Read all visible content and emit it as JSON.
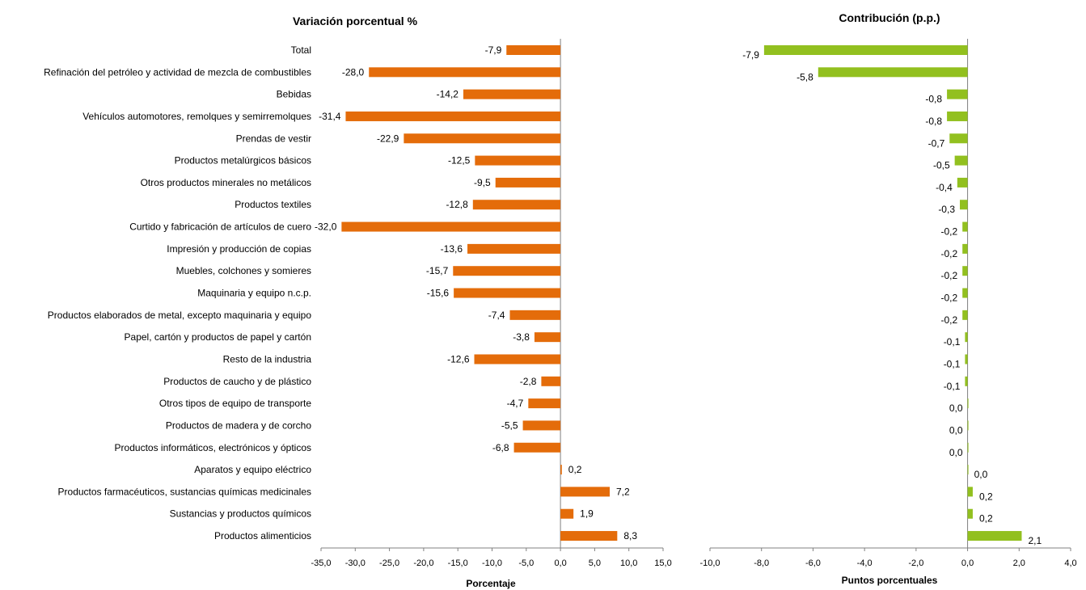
{
  "chart_data": [
    {
      "type": "bar",
      "orientation": "horizontal",
      "title": "Variación porcentual %",
      "xlabel": "Porcentaje",
      "color": "#E46C0A",
      "xlim": [
        -35,
        15
      ],
      "ticks": [
        -35,
        -30,
        -25,
        -20,
        -15,
        -10,
        -5,
        0,
        5,
        10,
        15
      ],
      "tick_labels": [
        "-35,0",
        "-30,0",
        "-25,0",
        "-20,0",
        "-15,0",
        "-10,0",
        "-5,0",
        "0,0",
        "5,0",
        "10,0",
        "15,0"
      ],
      "categories": [
        "Total",
        "Refinación del petróleo y actividad de mezcla de combustibles",
        "Bebidas",
        "Vehículos automotores, remolques y semirremolques",
        "Prendas de vestir",
        "Productos metalúrgicos básicos",
        "Otros productos minerales no metálicos",
        "Productos textiles",
        "Curtido y fabricación de artículos de cuero",
        "Impresión y producción de copias",
        "Muebles, colchones y somieres",
        "Maquinaria y equipo n.c.p.",
        "Productos elaborados de metal, excepto maquinaria y equipo",
        "Papel, cartón y productos de papel y cartón",
        "Resto de la industria",
        "Productos de caucho y de plástico",
        "Otros tipos de equipo de transporte",
        "Productos de madera y de corcho",
        "Productos informáticos, electrónicos y ópticos",
        "Aparatos y equipo eléctrico",
        "Productos farmacéuticos, sustancias químicas medicinales",
        "Sustancias y productos químicos",
        "Productos alimenticios"
      ],
      "values": [
        -7.9,
        -28.0,
        -14.2,
        -31.4,
        -22.9,
        -12.5,
        -9.5,
        -12.8,
        -32.0,
        -13.6,
        -15.7,
        -15.6,
        -7.4,
        -3.8,
        -12.6,
        -2.8,
        -4.7,
        -5.5,
        -6.8,
        0.2,
        7.2,
        1.9,
        8.3
      ],
      "value_labels": [
        "-7,9",
        "-28,0",
        "-14,2",
        "-31,4",
        "-22,9",
        "-12,5",
        "-9,5",
        "-12,8",
        "-32,0",
        "-13,6",
        "-15,7",
        "-15,6",
        "-7,4",
        "-3,8",
        "-12,6",
        "-2,8",
        "-4,7",
        "-5,5",
        "-6,8",
        "0,2",
        "7,2",
        "1,9",
        "8,3"
      ]
    },
    {
      "type": "bar",
      "orientation": "horizontal",
      "title": "Contribución (p.p.)",
      "xlabel": "Puntos porcentuales",
      "color": "#92C01F",
      "xlim": [
        -10,
        4
      ],
      "ticks": [
        -10,
        -8,
        -6,
        -4,
        -2,
        0,
        2,
        4
      ],
      "tick_labels": [
        "-10,0",
        "-8,0",
        "-6,0",
        "-4,0",
        "-2,0",
        "0,0",
        "2,0",
        "4,0"
      ],
      "values": [
        -7.9,
        -5.8,
        -0.8,
        -0.8,
        -0.7,
        -0.5,
        -0.4,
        -0.3,
        -0.2,
        -0.2,
        -0.2,
        -0.2,
        -0.2,
        -0.1,
        -0.1,
        -0.1,
        0.0,
        0.0,
        0.0,
        0.0,
        0.2,
        0.2,
        2.1
      ],
      "value_labels": [
        "-7,9",
        "-5,8",
        "-0,8",
        "-0,8",
        "-0,7",
        "-0,5",
        "-0,4",
        "-0,3",
        "-0,2",
        "-0,2",
        "-0,2",
        "-0,2",
        "-0,2",
        "-0,1",
        "-0,1",
        "-0,1",
        "0,0",
        "0,0",
        "0,0",
        "0,0",
        "0,2",
        "0,2",
        "2,1"
      ]
    }
  ]
}
